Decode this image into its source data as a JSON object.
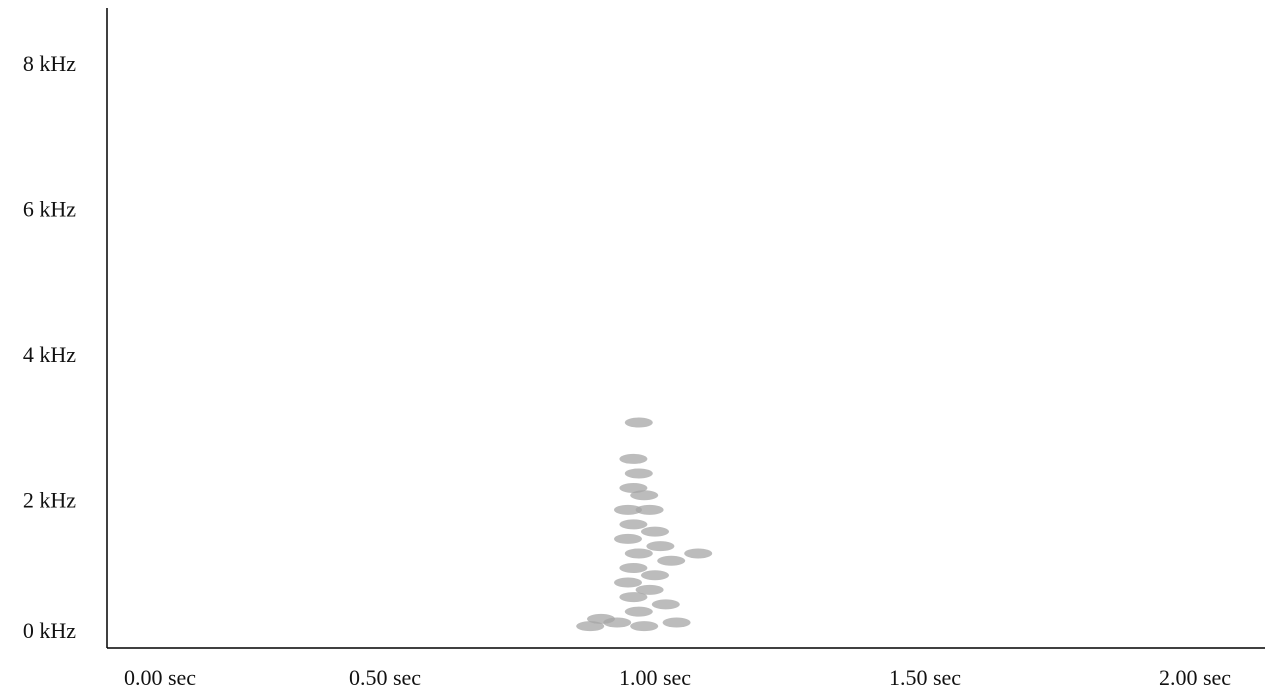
{
  "chart_data": {
    "type": "spectrogram",
    "x": [
      0.97,
      0.96,
      0.97,
      0.96,
      0.98,
      0.95,
      0.99,
      0.96,
      1.0,
      0.95,
      1.01,
      0.97,
      1.03,
      0.96,
      1.0,
      0.95,
      0.99,
      0.96,
      1.02,
      0.97,
      0.93,
      0.98,
      1.04,
      0.9,
      1.08,
      0.88
    ],
    "y": [
      3.1,
      2.6,
      2.4,
      2.2,
      2.1,
      1.9,
      1.9,
      1.7,
      1.6,
      1.5,
      1.4,
      1.3,
      1.2,
      1.1,
      1.0,
      0.9,
      0.8,
      0.7,
      0.6,
      0.5,
      0.35,
      0.3,
      0.35,
      0.4,
      1.3,
      0.3
    ],
    "color": "#a6a6a6",
    "xlim": [
      0,
      2.13
    ],
    "ylim": [
      0,
      8.8
    ],
    "xticks": [
      {
        "value": 0,
        "label": "0.00 sec"
      },
      {
        "value": 0.5,
        "label": "0.50 sec"
      },
      {
        "value": 1,
        "label": "1.00 sec"
      },
      {
        "value": 1.5,
        "label": "1.50 sec"
      },
      {
        "value": 2,
        "label": "2.00 sec"
      }
    ],
    "yticks": [
      {
        "value": 0,
        "label": "0 kHz"
      },
      {
        "value": 2,
        "label": "2 kHz"
      },
      {
        "value": 4,
        "label": "4 kHz"
      },
      {
        "value": 6,
        "label": "6 kHz"
      },
      {
        "value": 8,
        "label": "8 kHz"
      }
    ]
  }
}
